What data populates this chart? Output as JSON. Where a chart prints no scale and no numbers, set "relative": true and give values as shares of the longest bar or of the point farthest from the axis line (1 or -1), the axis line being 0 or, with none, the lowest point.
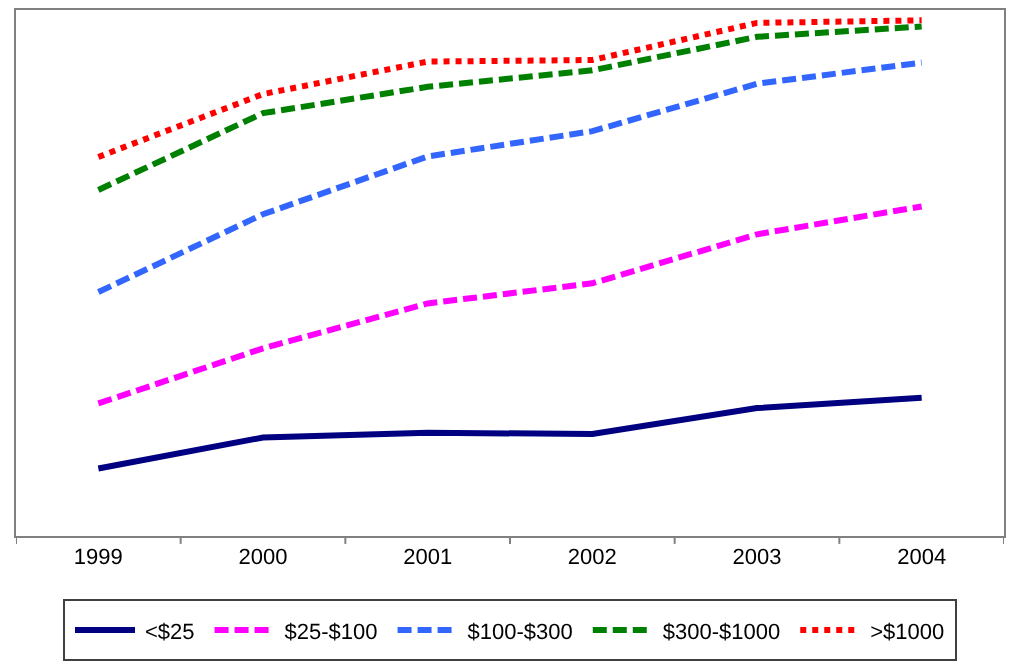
{
  "chart_data": {
    "type": "line",
    "relative": true,
    "categories": [
      "1999",
      "2000",
      "2001",
      "2002",
      "2003",
      "2004"
    ],
    "series": [
      {
        "name": "<$25",
        "color": "#000080",
        "line_style": "solid",
        "values": [
          0.131,
          0.191,
          0.2,
          0.198,
          0.248,
          0.268
        ]
      },
      {
        "name": "$25-$100",
        "color": "#ff00ff",
        "line_style": "dashed",
        "values": [
          0.257,
          0.364,
          0.451,
          0.49,
          0.585,
          0.639
        ]
      },
      {
        "name": "$100-$300",
        "color": "#3366ff",
        "line_style": "dashed",
        "values": [
          0.473,
          0.624,
          0.736,
          0.785,
          0.877,
          0.918
        ]
      },
      {
        "name": "$300-$1000",
        "color": "#008000",
        "line_style": "dashed",
        "values": [
          0.671,
          0.82,
          0.871,
          0.903,
          0.968,
          0.988
        ]
      },
      {
        "name": ">$1000",
        "color": "#ff0000",
        "line_style": "dotted",
        "values": [
          0.735,
          0.857,
          0.92,
          0.923,
          0.995,
          1
        ]
      }
    ],
    "marker": "none",
    "legend": "bottom"
  }
}
